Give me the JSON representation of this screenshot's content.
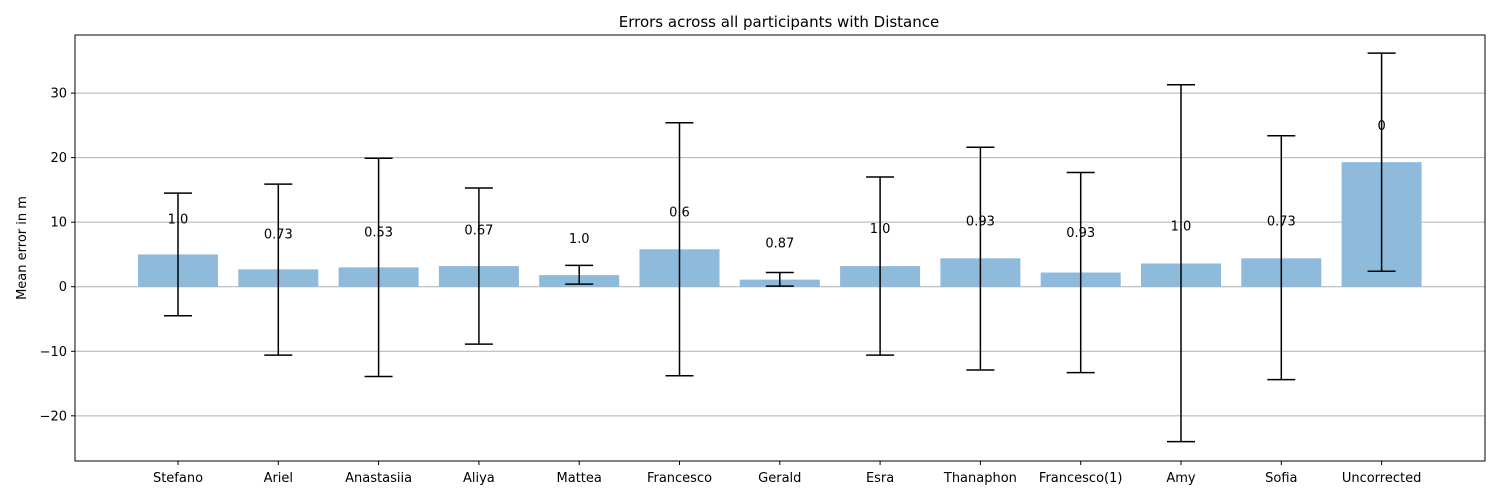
{
  "chart_data": {
    "type": "bar",
    "title": "Errors across all participants with Distance",
    "xlabel": "",
    "ylabel": "Mean error in m",
    "ylim": [
      -27,
      39
    ],
    "yticks": [
      -20,
      -10,
      0,
      10,
      20,
      30
    ],
    "ytick_labels": [
      "−20",
      "−10",
      "0",
      "10",
      "20",
      "30"
    ],
    "grid": "y",
    "categories": [
      "Stefano",
      "Ariel",
      "Anastasiia",
      "Aliya",
      "Mattea",
      "Francesco",
      "Gerald",
      "Esra",
      "Thanaphon",
      "Francesco(1)",
      "Amy",
      "Sofia",
      "Uncorrected"
    ],
    "values": [
      5.0,
      2.7,
      3.0,
      3.2,
      1.8,
      5.8,
      1.1,
      3.2,
      4.4,
      2.2,
      3.6,
      4.4,
      19.3
    ],
    "error_upper": [
      14.5,
      15.9,
      19.9,
      15.3,
      3.3,
      25.4,
      2.2,
      17.0,
      21.6,
      17.7,
      31.3,
      23.4,
      36.2
    ],
    "error_lower": [
      -4.5,
      -10.6,
      -13.9,
      -8.9,
      0.4,
      -13.8,
      0.1,
      -10.6,
      -12.9,
      -13.3,
      -24.0,
      -14.4,
      2.4
    ],
    "annotations": [
      "1.0",
      "0.73",
      "0.53",
      "0.67",
      "1.0",
      "0.6",
      "0.87",
      "1.0",
      "0.93",
      "0.93",
      "1.0",
      "0.73",
      "0"
    ],
    "annotation_y": [
      10.5,
      8.2,
      8.5,
      8.8,
      7.5,
      11.6,
      6.8,
      9.0,
      10.2,
      8.4,
      9.4,
      10.2,
      25.0
    ],
    "colors": {
      "bar": "#8ebadb",
      "error": "#000000",
      "grid": "#b0b0b0"
    }
  }
}
